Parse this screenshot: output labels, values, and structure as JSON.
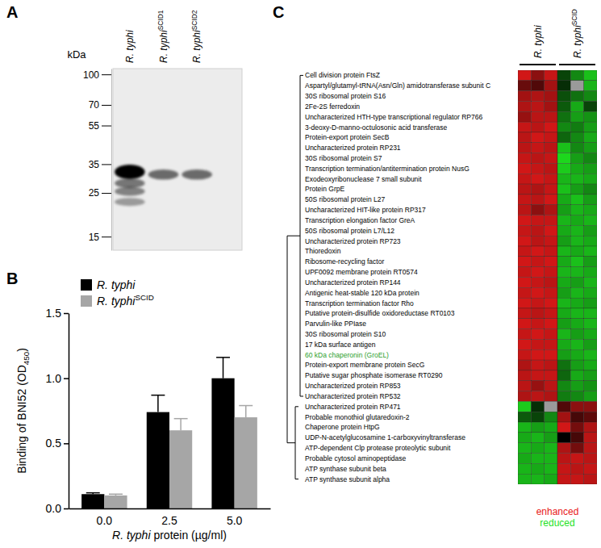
{
  "chart_data": [
    {
      "type": "blot",
      "title": "A",
      "ylabel": "kDa",
      "categories": [
        [
          "R. typhi"
        ],
        [
          "R. typhi",
          "SCID1"
        ],
        [
          "R. typhi",
          "SCID2"
        ]
      ],
      "log": "y",
      "ylim": [
        12.8,
        107
      ],
      "yticks": [
        100,
        70,
        55,
        35,
        25,
        15
      ],
      "bands": [
        {
          "lane": 0,
          "kDa": 32,
          "intensity": 1
        },
        {
          "lane": 0,
          "kDa": 28,
          "intensity": 0.5
        },
        {
          "lane": 0,
          "kDa": 25.5,
          "intensity": 0.45
        },
        {
          "lane": 0,
          "kDa": 22.5,
          "intensity": 0.35
        },
        {
          "lane": 1,
          "kDa": 31,
          "intensity": 0.55
        },
        {
          "lane": 2,
          "kDa": 31,
          "intensity": 0.55
        }
      ]
    },
    {
      "type": "bar",
      "title": "B",
      "xlabel": [
        "R. typhi",
        " protein (µg/ml)"
      ],
      "ylabel": [
        "Binding of BNI52 (OD",
        "450",
        ")"
      ],
      "categories": [
        "0.0",
        "2.5",
        "5.0"
      ],
      "series": [
        {
          "name": [
            "R. typhi"
          ],
          "color": "#000000",
          "values": [
            0.11,
            0.74,
            1.0
          ],
          "errors": [
            0.01,
            0.13,
            0.16
          ]
        },
        {
          "name": [
            "R. typhi",
            "SCID"
          ],
          "color": "#a6a6a6",
          "values": [
            0.1,
            0.6,
            0.7
          ],
          "errors": [
            0.01,
            0.09,
            0.09
          ]
        }
      ],
      "ylim": [
        0,
        1.5
      ],
      "yticks": [
        {
          "value": 0,
          "label": "0.0"
        },
        {
          "value": 0.5,
          "label": "0.5"
        },
        {
          "value": 1,
          "label": "1.0"
        },
        {
          "value": 1.5,
          "label": "1.5"
        }
      ],
      "legend": "top-left"
    },
    {
      "type": "heatmap",
      "title": "C",
      "rows": [
        "Cell division protein FtsZ",
        "Aspartyl/glutamyl-tRNA(Asn/Gln) amidotransferase subunit C",
        "30S ribosomal protein S16",
        "2Fe-2S ferredoxin",
        "Uncharacterized HTH-type transcriptional regulator RP766",
        "3-deoxy-D-manno-octulosonic acid transferase",
        "Protein-export protein SecB",
        "Uncharacterized protein RP231",
        "30S ribosomal protein S7",
        "Transcription termination/antitermination protein NusG",
        "Exodeoxyribonuclease 7 small subunit",
        "Protein GrpE",
        "50S ribosomal protein L27",
        "Uncharacterized HIT-like protein RP317",
        "Transcription elongation factor GreA",
        "50S ribosomal protein L7/L12",
        "Uncharacterized protein RP723",
        "Thioredoxin",
        "Ribosome-recycling factor",
        "UPF0092 membrane protein RT0574",
        "Uncharacterized protein RP144",
        "Antigenic heat-stable 120 kDa protein",
        "Transcription termination factor Rho",
        "Putative protein-disulfide oxidoreductase RT0103",
        "Parvulin-like PPIase",
        "30S ribosomal protein S10",
        "17 kDa surface antigen",
        "60 kDa chaperonin (GroEL)",
        "Protein-export membrane protein SecG",
        "Putative sugar phosphate isomerase RT0290",
        "Uncharacterized protein RP853",
        "Uncharacterized protein RP532",
        "Uncharacterized protein RP471",
        "Probable monothiol glutaredoxin-2",
        "Chaperone protein HtpG",
        "UDP-N-acetylglucosamine 1-carboxyvinyltransferase",
        "ATP-dependent Clp protease proteolytic subunit",
        "Probable cytosol aminopeptidase",
        "ATP synthase subunit beta",
        "ATP synthase subunit alpha"
      ],
      "label_colors": [
        "#000000",
        "#000000",
        "#000000",
        "#000000",
        "#000000",
        "#000000",
        "#000000",
        "#000000",
        "#000000",
        "#000000",
        "#000000",
        "#000000",
        "#000000",
        "#000000",
        "#000000",
        "#000000",
        "#000000",
        "#000000",
        "#000000",
        "#000000",
        "#000000",
        "#000000",
        "#000000",
        "#000000",
        "#000000",
        "#000000",
        "#000000",
        "#2ca02c",
        "#000000",
        "#000000",
        "#000000",
        "#000000",
        "#000000",
        "#000000",
        "#000000",
        "#000000",
        "#000000",
        "#000000",
        "#000000",
        "#000000"
      ],
      "groups": [
        {
          "name": [
            "R. typhi"
          ],
          "columns": 3
        },
        {
          "name": [
            "R. typhi",
            "SCID"
          ],
          "columns": 3
        }
      ],
      "cells": [
        [
          0.9,
          0.6,
          0.85,
          -0.3,
          -0.6,
          -0.85
        ],
        [
          0.45,
          0.35,
          0.7,
          -0.2,
          null,
          -0.8
        ],
        [
          0.7,
          0.75,
          0.7,
          -0.35,
          -0.5,
          -0.6
        ],
        [
          0.75,
          0.8,
          0.7,
          -0.4,
          -0.75,
          -0.3
        ],
        [
          0.65,
          0.8,
          0.8,
          -0.5,
          -0.7,
          -0.65
        ],
        [
          0.85,
          0.8,
          0.9,
          -0.6,
          -0.55,
          -0.7
        ],
        [
          0.8,
          0.9,
          0.85,
          -0.45,
          -0.6,
          -0.75
        ],
        [
          0.8,
          0.85,
          0.8,
          -0.85,
          -0.6,
          -0.7
        ],
        [
          0.85,
          0.8,
          0.85,
          -0.95,
          -0.7,
          -0.6
        ],
        [
          0.9,
          0.85,
          0.8,
          -0.9,
          -0.75,
          -0.7
        ],
        [
          0.85,
          0.9,
          0.85,
          -0.8,
          -0.8,
          -0.75
        ],
        [
          0.8,
          0.75,
          0.85,
          -0.85,
          -0.7,
          -0.6
        ],
        [
          0.85,
          0.8,
          0.9,
          -0.75,
          -0.85,
          -0.7
        ],
        [
          0.8,
          0.6,
          0.75,
          -0.7,
          -0.8,
          -0.75
        ],
        [
          0.9,
          0.85,
          0.85,
          -0.8,
          -0.75,
          -0.8
        ],
        [
          0.85,
          0.8,
          0.9,
          -0.75,
          -0.8,
          -0.7
        ],
        [
          0.9,
          0.8,
          0.85,
          -0.7,
          -0.8,
          -0.75
        ],
        [
          0.85,
          0.9,
          0.85,
          -0.8,
          -0.75,
          -0.8
        ],
        [
          0.9,
          0.85,
          0.9,
          -0.75,
          -0.85,
          -0.7
        ],
        [
          0.85,
          0.9,
          0.85,
          -0.8,
          -0.8,
          -0.75
        ],
        [
          0.9,
          0.85,
          0.8,
          -0.75,
          -0.7,
          -0.8
        ],
        [
          0.85,
          0.9,
          0.85,
          -0.7,
          -0.8,
          -0.75
        ],
        [
          0.9,
          0.85,
          0.9,
          -0.8,
          -0.75,
          -0.7
        ],
        [
          0.85,
          0.8,
          0.85,
          -0.75,
          -0.8,
          -0.8
        ],
        [
          0.9,
          0.85,
          0.9,
          -0.7,
          -0.75,
          -0.8
        ],
        [
          0.85,
          0.9,
          0.85,
          -0.8,
          -0.7,
          -0.75
        ],
        [
          0.9,
          0.85,
          0.85,
          -0.75,
          -0.8,
          -0.7
        ],
        [
          0.85,
          0.9,
          0.9,
          -0.7,
          -0.75,
          -0.8
        ],
        [
          0.75,
          0.85,
          0.8,
          -0.5,
          -0.7,
          -0.75
        ],
        [
          0.8,
          0.85,
          0.85,
          -0.45,
          -0.75,
          -0.7
        ],
        [
          0.8,
          0.65,
          0.8,
          -0.6,
          -0.7,
          -0.65
        ],
        [
          0.75,
          0.8,
          0.75,
          -0.55,
          -0.6,
          -0.7
        ],
        [
          -0.9,
          -0.2,
          null,
          0.35,
          0.6,
          0.6
        ],
        [
          -0.4,
          -0.3,
          -0.6,
          0.7,
          0.3,
          0.4
        ],
        [
          -0.8,
          -0.7,
          -0.75,
          0.9,
          0.5,
          0.75
        ],
        [
          -0.75,
          -0.8,
          -0.7,
          0.0,
          0.3,
          0.8
        ],
        [
          -0.8,
          -0.75,
          -0.8,
          0.75,
          0.5,
          0.8
        ],
        [
          -0.75,
          -0.8,
          -0.8,
          0.8,
          0.85,
          0.8
        ],
        [
          -0.8,
          -0.75,
          -0.8,
          0.85,
          0.8,
          0.85
        ],
        [
          -0.8,
          -0.8,
          -0.75,
          0.85,
          0.85,
          0.8
        ]
      ],
      "color_range": [
        -1,
        1
      ],
      "color_labels": [
        "enhanced",
        "reduced"
      ],
      "clusters": [
        32,
        8
      ]
    }
  ]
}
